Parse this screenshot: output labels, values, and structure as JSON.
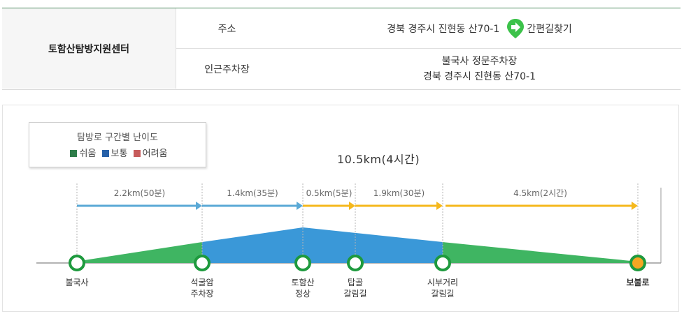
{
  "info": {
    "center_name": "토함산탐방지원센터",
    "address_label": "주소",
    "address_value": "경북 경주시 진현동 산70-1",
    "directions_label": "간편길찾기",
    "parking_label": "인근주차장",
    "parking_name": "불국사 정문주차장",
    "parking_address": "경북 경주시 진현동 산70-1"
  },
  "legend": {
    "title": "탐방로 구간별 난이도",
    "items": [
      {
        "label": "쉬움",
        "color": "#2e7d4a"
      },
      {
        "label": "보통",
        "color": "#2660a8"
      },
      {
        "label": "어려움",
        "color": "#c75b5b"
      }
    ]
  },
  "trail": {
    "total": "10.5km(4시간)",
    "segments": [
      {
        "label": "2.2km(50분)",
        "color": "#5aa9d6"
      },
      {
        "label": "1.4km(35분)",
        "color": "#5aa9d6"
      },
      {
        "label": "0.5km(5분)",
        "color": "#f5b81c"
      },
      {
        "label": "1.9km(30분)",
        "color": "#f5b81c"
      },
      {
        "label": "4.5km(2시간)",
        "color": "#f5b81c"
      }
    ],
    "stops": [
      {
        "line1": "불국사",
        "line2": ""
      },
      {
        "line1": "석굴암",
        "line2": "주차장"
      },
      {
        "line1": "토함산",
        "line2": "정상"
      },
      {
        "line1": "탑골",
        "line2": "갈림길"
      },
      {
        "line1": "시부거리",
        "line2": "갈림길"
      },
      {
        "line1": "보불로",
        "line2": ""
      }
    ]
  },
  "colors": {
    "easy_fill": "#3fb562",
    "normal_fill": "#3a98d8",
    "header_border": "#4a8a5e",
    "end_marker": "#f5a623",
    "direction_icon": "#3cc24a"
  }
}
